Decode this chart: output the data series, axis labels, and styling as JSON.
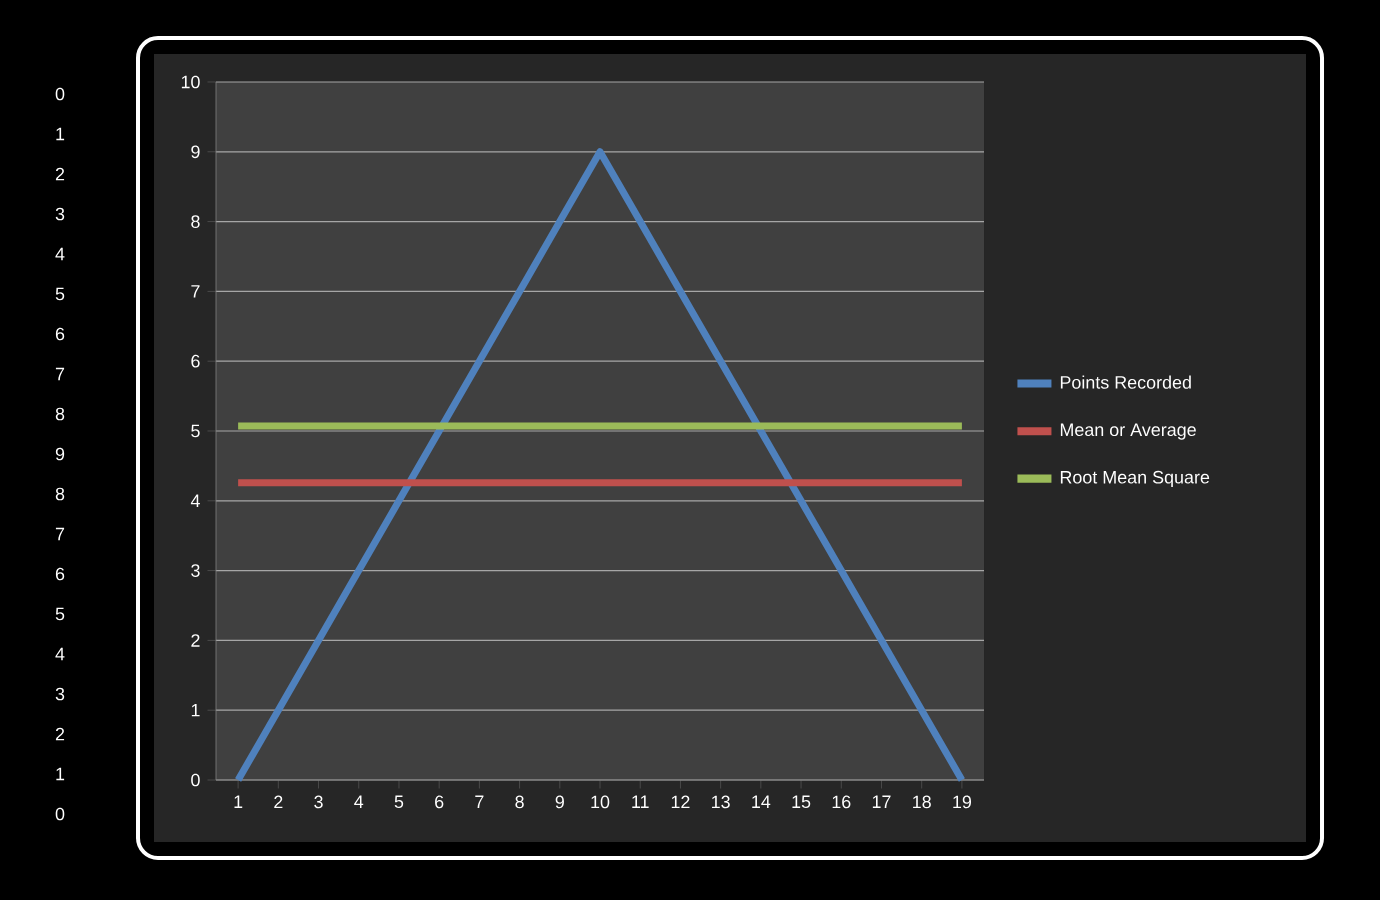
{
  "chart_data": {
    "type": "line",
    "categories": [
      "1",
      "2",
      "3",
      "4",
      "5",
      "6",
      "7",
      "8",
      "9",
      "10",
      "11",
      "12",
      "13",
      "14",
      "15",
      "16",
      "17",
      "18",
      "19"
    ],
    "series": [
      {
        "name": "Points Recorded",
        "color": "#4f81bd",
        "values": [
          0,
          1,
          2,
          3,
          4,
          5,
          6,
          7,
          8,
          9,
          8,
          7,
          6,
          5,
          4,
          3,
          2,
          1,
          0
        ]
      },
      {
        "name": "Mean or Average",
        "color": "#c0504d",
        "values": [
          4.26,
          4.26,
          4.26,
          4.26,
          4.26,
          4.26,
          4.26,
          4.26,
          4.26,
          4.26,
          4.26,
          4.26,
          4.26,
          4.26,
          4.26,
          4.26,
          4.26,
          4.26,
          4.26
        ]
      },
      {
        "name": "Root Mean Square",
        "color": "#9bbb59",
        "values": [
          5.07,
          5.07,
          5.07,
          5.07,
          5.07,
          5.07,
          5.07,
          5.07,
          5.07,
          5.07,
          5.07,
          5.07,
          5.07,
          5.07,
          5.07,
          5.07,
          5.07,
          5.07,
          5.07
        ]
      }
    ],
    "ylim": [
      0,
      10
    ],
    "yticks": [
      0,
      1,
      2,
      3,
      4,
      5,
      6,
      7,
      8,
      9,
      10
    ],
    "grid": "y",
    "legend": "right",
    "marker": "none",
    "line_style": "solid",
    "annotations": [
      "0",
      "1",
      "2",
      "3",
      "4",
      "5",
      "6",
      "7",
      "8",
      "9",
      "8",
      "7",
      "6",
      "5",
      "4",
      "3",
      "2",
      "1",
      "0"
    ]
  }
}
